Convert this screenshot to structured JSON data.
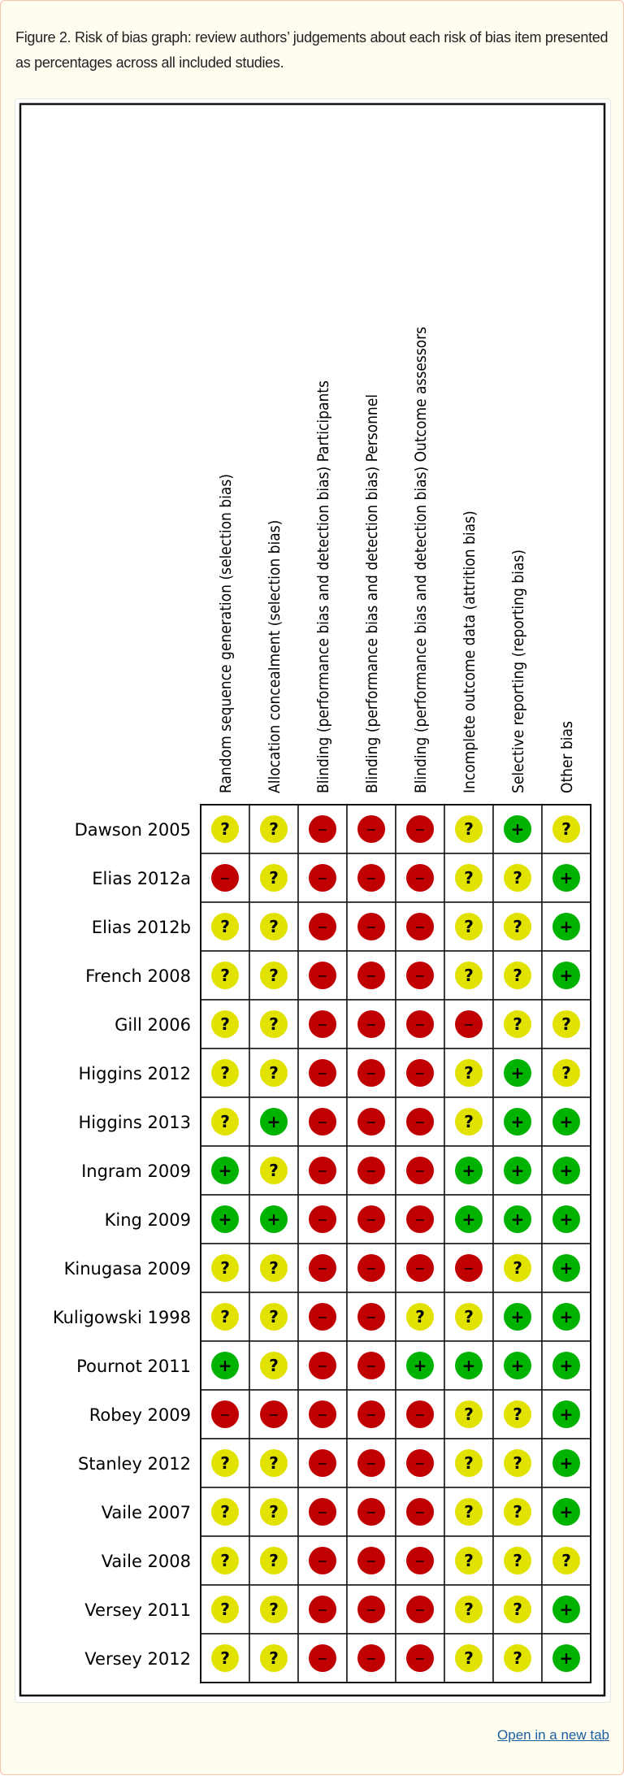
{
  "caption": "Figure 2. Risk of bias graph: review authors’ judgements about each risk of bias item presented as percentages across all included studies.",
  "open_link": "Open in a new tab",
  "colors": {
    "low": "#00b300",
    "unclear": "#e2e200",
    "high": "#c00000"
  },
  "chart_data": {
    "type": "table",
    "columns": [
      "Random sequence generation (selection bias)",
      "Allocation concealment (selection bias)",
      "Blinding (performance bias and detection bias) Participants",
      "Blinding (performance bias and detection bias) Personnel",
      "Blinding (performance bias and detection bias) Outcome assessors",
      "Incomplete outcome data (attrition bias)",
      "Selective reporting (reporting bias)",
      "Other bias"
    ],
    "symbols": {
      "low": "+",
      "unclear": "?",
      "high": "−"
    },
    "rows": [
      {
        "study": "Dawson 2005",
        "ratings": [
          "?",
          "?",
          "-",
          "-",
          "-",
          "?",
          "+",
          "?"
        ]
      },
      {
        "study": "Elias 2012a",
        "ratings": [
          "-",
          "?",
          "-",
          "-",
          "-",
          "?",
          "?",
          "+"
        ]
      },
      {
        "study": "Elias 2012b",
        "ratings": [
          "?",
          "?",
          "-",
          "-",
          "-",
          "?",
          "?",
          "+"
        ]
      },
      {
        "study": "French 2008",
        "ratings": [
          "?",
          "?",
          "-",
          "-",
          "-",
          "?",
          "?",
          "+"
        ]
      },
      {
        "study": "Gill 2006",
        "ratings": [
          "?",
          "?",
          "-",
          "-",
          "-",
          "-",
          "?",
          "?"
        ]
      },
      {
        "study": "Higgins 2012",
        "ratings": [
          "?",
          "?",
          "-",
          "-",
          "-",
          "?",
          "+",
          "?"
        ]
      },
      {
        "study": "Higgins 2013",
        "ratings": [
          "?",
          "+",
          "-",
          "-",
          "-",
          "?",
          "+",
          "+"
        ]
      },
      {
        "study": "Ingram 2009",
        "ratings": [
          "+",
          "?",
          "-",
          "-",
          "-",
          "+",
          "+",
          "+"
        ]
      },
      {
        "study": "King 2009",
        "ratings": [
          "+",
          "+",
          "-",
          "-",
          "-",
          "+",
          "+",
          "+"
        ]
      },
      {
        "study": "Kinugasa 2009",
        "ratings": [
          "?",
          "?",
          "-",
          "-",
          "-",
          "-",
          "?",
          "+"
        ]
      },
      {
        "study": "Kuligowski 1998",
        "ratings": [
          "?",
          "?",
          "-",
          "-",
          "?",
          "?",
          "+",
          "+"
        ]
      },
      {
        "study": "Pournot 2011",
        "ratings": [
          "+",
          "?",
          "-",
          "-",
          "+",
          "+",
          "+",
          "+"
        ]
      },
      {
        "study": "Robey 2009",
        "ratings": [
          "-",
          "-",
          "-",
          "-",
          "-",
          "?",
          "?",
          "+"
        ]
      },
      {
        "study": "Stanley 2012",
        "ratings": [
          "?",
          "?",
          "-",
          "-",
          "-",
          "?",
          "?",
          "+"
        ]
      },
      {
        "study": "Vaile 2007",
        "ratings": [
          "?",
          "?",
          "-",
          "-",
          "-",
          "?",
          "?",
          "+"
        ]
      },
      {
        "study": "Vaile 2008",
        "ratings": [
          "?",
          "?",
          "-",
          "-",
          "-",
          "?",
          "?",
          "?"
        ]
      },
      {
        "study": "Versey 2011",
        "ratings": [
          "?",
          "?",
          "-",
          "-",
          "-",
          "?",
          "?",
          "+"
        ]
      },
      {
        "study": "Versey 2012",
        "ratings": [
          "?",
          "?",
          "-",
          "-",
          "-",
          "?",
          "?",
          "+"
        ]
      }
    ]
  }
}
